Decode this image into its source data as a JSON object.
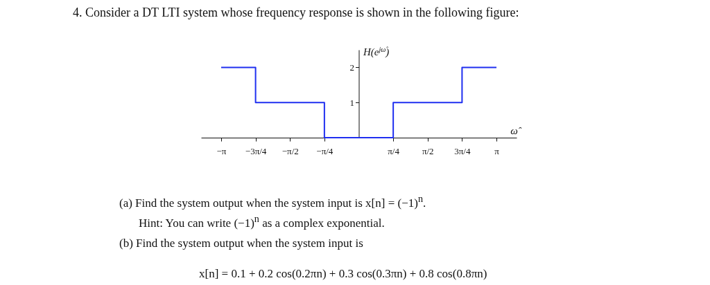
{
  "chart_data": {
    "type": "step",
    "title": "4. Consider a DT LTI system whose frequency response is shown in the following figure:",
    "xlabel": "ω̂",
    "ylabel": "H(e$^{jω̂}$)",
    "x": [
      -3.1416,
      -2.3562,
      -0.7854,
      0.7854,
      2.3562,
      3.1416
    ],
    "series": [
      {
        "color": "#1f2ff0",
        "values": [
          2,
          1,
          0,
          1,
          2,
          2
        ]
      }
    ],
    "xlim": [
      -3.6,
      3.6
    ],
    "ylim": [
      0,
      2.5
    ],
    "xticks": [
      {
        "value": -3.1416,
        "label": "−π"
      },
      {
        "value": -2.3562,
        "label": "−3π/4"
      },
      {
        "value": -1.5708,
        "label": "−π/2"
      },
      {
        "value": -0.7854,
        "label": "−π/4"
      },
      {
        "value": 0.7854,
        "label": "π/4"
      },
      {
        "value": 1.5708,
        "label": "π/2"
      },
      {
        "value": 2.3562,
        "label": "3π/4"
      },
      {
        "value": 3.1416,
        "label": "π"
      }
    ],
    "yticks": [
      1,
      2
    ],
    "grid": false,
    "annotations": [
      "(a) Find the system output when the system input is x[n] = (−1)$^{n}$.",
      "Hint: You can write (−1)$^{n}$ as a complex exponential.",
      "(b) Find the system output when the system input is",
      "x[n] = 0.1 + 0.2 cos(0.2πn) + 0.3 cos(0.3πn) + 0.8 cos(0.8πn)"
    ]
  }
}
